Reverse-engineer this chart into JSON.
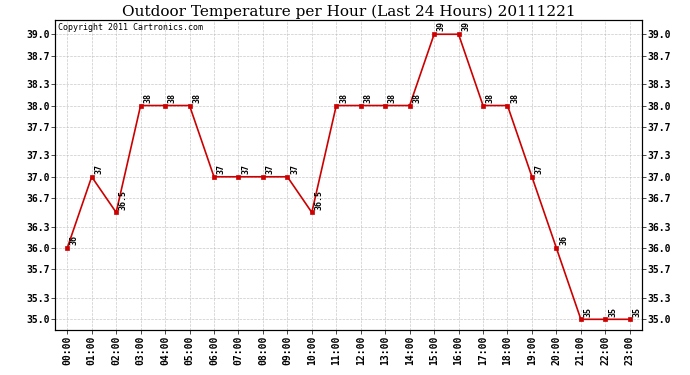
{
  "title": "Outdoor Temperature per Hour (Last 24 Hours) 20111221",
  "copyright": "Copyright 2011 Cartronics.com",
  "hours": [
    "00:00",
    "01:00",
    "02:00",
    "03:00",
    "04:00",
    "05:00",
    "06:00",
    "07:00",
    "08:00",
    "09:00",
    "10:00",
    "11:00",
    "12:00",
    "13:00",
    "14:00",
    "15:00",
    "16:00",
    "17:00",
    "18:00",
    "19:00",
    "20:00",
    "21:00",
    "22:00",
    "23:00"
  ],
  "temps": [
    36,
    37,
    36.5,
    38,
    38,
    38,
    37,
    37,
    37,
    37,
    36.5,
    38,
    38,
    38,
    38,
    39,
    39,
    38,
    38,
    37,
    36,
    35,
    35,
    35
  ],
  "ylim_low": 34.85,
  "ylim_high": 39.2,
  "yticks": [
    35.0,
    35.3,
    35.7,
    36.0,
    36.3,
    36.7,
    37.0,
    37.3,
    37.7,
    38.0,
    38.3,
    38.7,
    39.0
  ],
  "line_color": "#cc0000",
  "marker_color": "#cc0000",
  "grid_color": "#bbbbbb",
  "bg_color": "white",
  "title_fontsize": 11,
  "tick_fontsize": 7,
  "annot_fontsize": 6,
  "copyright_fontsize": 6,
  "annot_labels": [
    "36",
    "37",
    "36.5",
    "38",
    "38",
    "38",
    "37",
    "37",
    "37",
    "37",
    "36.5",
    "38",
    "38",
    "38",
    "38",
    "39",
    "39",
    "38",
    "38",
    "37",
    "36",
    "35",
    "35",
    "35"
  ]
}
